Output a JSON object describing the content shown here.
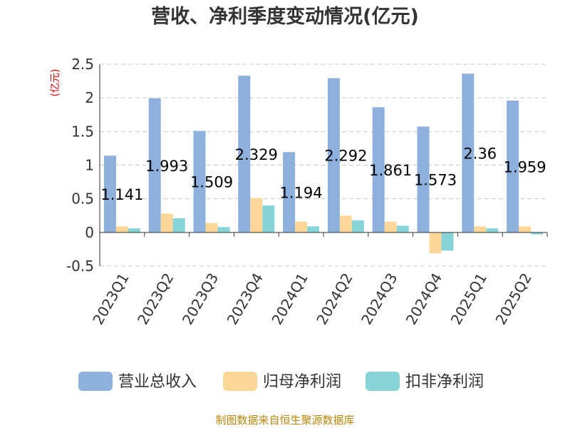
{
  "chart_data": {
    "type": "bar",
    "title": "营收、净利季度变动情况(亿元)",
    "ylabel": "(亿元)",
    "xlabel": "",
    "ylim": [
      -0.5,
      2.5
    ],
    "yticks": [
      -0.5,
      0,
      0.5,
      1,
      1.5,
      2,
      2.5
    ],
    "ytick_labels": [
      "-0.5",
      "0",
      "0.5",
      "1",
      "1.5",
      "2",
      "2.5"
    ],
    "grid": true,
    "legend_position": "bottom",
    "categories": [
      "2023Q1",
      "2023Q2",
      "2023Q3",
      "2023Q4",
      "2024Q1",
      "2024Q2",
      "2024Q3",
      "2024Q4",
      "2025Q1",
      "2025Q2"
    ],
    "series": [
      {
        "name": "营业总收入",
        "color": "#8eb0dd",
        "values": [
          1.141,
          1.993,
          1.509,
          2.329,
          1.194,
          2.292,
          1.861,
          1.573,
          2.36,
          1.959
        ],
        "data_labels": [
          "1.141",
          "1.993",
          "1.509",
          "2.329",
          "1.194",
          "2.292",
          "1.861",
          "1.573",
          "2.36",
          "1.959"
        ]
      },
      {
        "name": "归母净利润",
        "color": "#fdd797",
        "values": [
          0.09,
          0.28,
          0.14,
          0.51,
          0.16,
          0.25,
          0.16,
          -0.31,
          0.09,
          0.09
        ]
      },
      {
        "name": "扣非净利润",
        "color": "#86d4d7",
        "values": [
          0.06,
          0.21,
          0.08,
          0.4,
          0.09,
          0.18,
          0.1,
          -0.27,
          0.06,
          -0.03
        ]
      }
    ],
    "source": "制图数据来自恒生聚源数据库"
  }
}
